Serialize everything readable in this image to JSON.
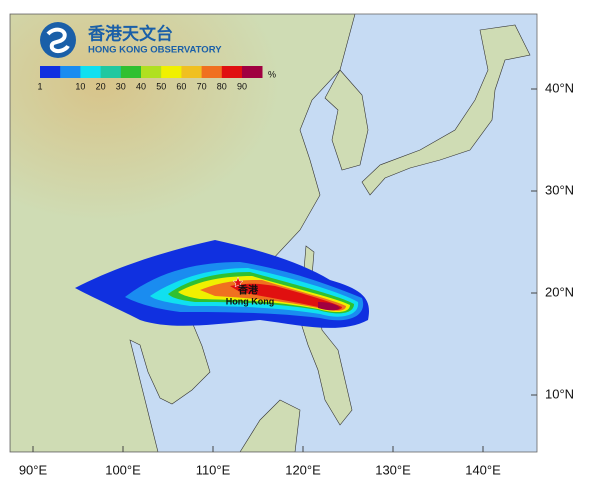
{
  "header": {
    "title_zh": "香港天文台",
    "title_en": "HONG KONG OBSERVATORY"
  },
  "legend": {
    "labels": [
      "1",
      "10",
      "20",
      "30",
      "40",
      "50",
      "60",
      "70",
      "80",
      "90"
    ],
    "unit": "%"
  },
  "axes": {
    "x_labels": [
      "90°E",
      "100°E",
      "110°E",
      "120°E",
      "130°E",
      "140°E"
    ],
    "y_labels": [
      "40°N",
      "30°N",
      "20°N",
      "10°N"
    ]
  },
  "map": {
    "place_zh": "香港",
    "place_en": "Hong Kong"
  }
}
